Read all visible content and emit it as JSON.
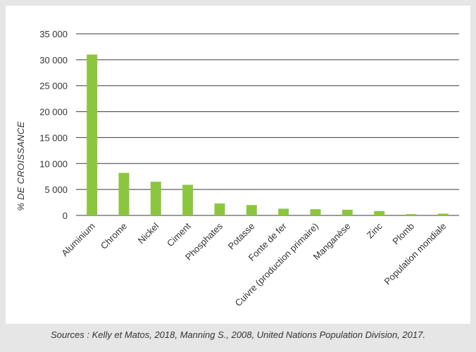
{
  "colors": {
    "bar": "#8cc63f",
    "grid": "#3a3a3a",
    "text": "#333333",
    "panel": "#ffffff",
    "background": "#e6e6e6"
  },
  "source": "Sources : Kelly et Matos, 2018, Manning S., 2008, United Nations Population Division, 2017.",
  "chart_data": {
    "type": "bar",
    "title": "",
    "xlabel": "",
    "ylabel": "% DE CROISSANCE",
    "ylim": [
      0,
      35000
    ],
    "yticks": [
      0,
      5000,
      10000,
      15000,
      20000,
      25000,
      30000,
      35000
    ],
    "ytick_labels": [
      "0",
      "5 000",
      "10 000",
      "15 000",
      "20 000",
      "25 000",
      "30 000",
      "35 000"
    ],
    "grid": true,
    "categories": [
      "Aluminium",
      "Chrome",
      "Nickel",
      "Ciment",
      "Phosphates",
      "Potasse",
      "Fonte de fer",
      "Cuivre (production primaire)",
      "Manganèse",
      "Zinc",
      "Plomb",
      "Population mondiale"
    ],
    "values": [
      31000,
      8200,
      6500,
      5900,
      2300,
      2000,
      1300,
      1200,
      1100,
      850,
      250,
      350
    ]
  }
}
